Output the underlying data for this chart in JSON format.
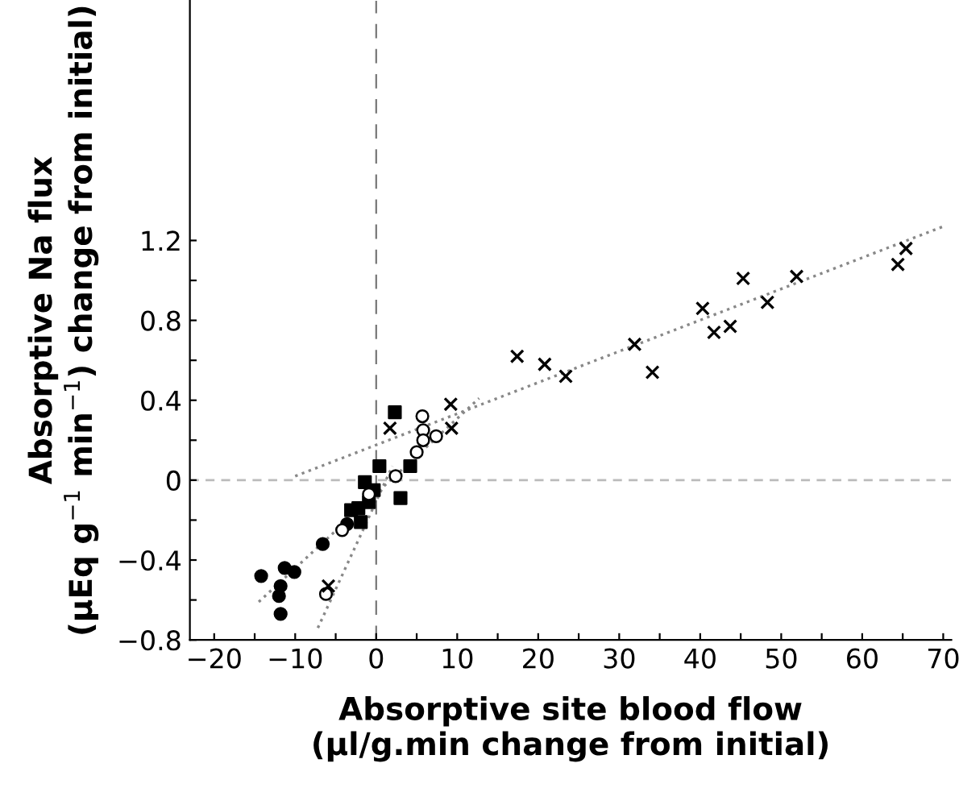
{
  "chart_data": {
    "type": "scatter",
    "xlabel": "Absorptive site blood flow\n(μl/g.min change from initial)",
    "ylabel": "Absorptive Na flux\n(μEq g$^{−1}$ min$^{−1}$) change from initial)",
    "xlim": [
      -23,
      71
    ],
    "ylim": [
      -0.8,
      2.4
    ],
    "xticks": [
      {
        "value": -20,
        "label": "−20"
      },
      {
        "value": -15,
        "label": null
      },
      {
        "value": -10,
        "label": "−10"
      },
      {
        "value": -5,
        "label": null
      },
      0,
      {
        "value": 5,
        "label": null
      },
      10,
      {
        "value": 15,
        "label": null
      },
      20,
      {
        "value": 25,
        "label": null
      },
      30,
      {
        "value": 35,
        "label": null
      },
      40,
      {
        "value": 45,
        "label": null
      },
      50,
      {
        "value": 55,
        "label": null
      },
      60,
      {
        "value": 65,
        "label": null
      },
      70
    ],
    "yticks": [
      {
        "value": -0.8,
        "label": "−0.8"
      },
      {
        "value": -0.6,
        "label": null
      },
      {
        "value": -0.4,
        "label": "−0.4"
      },
      {
        "value": -0.2,
        "label": null
      },
      0,
      {
        "value": 0.2,
        "label": null
      },
      0.4,
      {
        "value": 0.6,
        "label": null
      },
      0.8,
      {
        "value": 1.0,
        "label": null
      },
      1.2
    ],
    "grid": false,
    "ref_lines": [
      {
        "axis": "x",
        "value": 0,
        "line_style": "dashed",
        "color": "#777777"
      },
      {
        "axis": "y",
        "value": 0,
        "line_style": "dashed",
        "color": "#bbbbbb"
      }
    ],
    "series": [
      {
        "marker": "circle",
        "color": "#000000",
        "x": [
          -14.2,
          -11.3,
          -10.1,
          -11.8,
          -12.0,
          -11.8,
          -6.6,
          -3.6
        ],
        "values": [
          -0.48,
          -0.44,
          -0.46,
          -0.53,
          -0.58,
          -0.67,
          -0.32,
          -0.22
        ]
      },
      {
        "marker": "square",
        "color": "#000000",
        "x": [
          2.3,
          0.4,
          -1.4,
          4.2,
          3.0,
          -0.3,
          -0.9,
          -3.1,
          -1.9,
          -2.2
        ],
        "values": [
          0.34,
          0.07,
          -0.01,
          0.07,
          -0.09,
          -0.05,
          -0.11,
          -0.15,
          -0.21,
          -0.14
        ]
      },
      {
        "marker": "circle",
        "color": "#ffffff",
        "x": [
          5.7,
          5.8,
          5.8,
          5.0,
          7.4,
          2.4,
          -0.9,
          -4.2,
          -6.2
        ],
        "values": [
          0.32,
          0.25,
          0.2,
          0.14,
          0.22,
          0.02,
          -0.07,
          -0.25,
          -0.57
        ]
      },
      {
        "marker": "cross",
        "color": "#000000",
        "x": [
          9.2,
          1.7,
          9.3,
          -5.9,
          17.4,
          20.8,
          23.4,
          31.9,
          34.1,
          40.3,
          41.7,
          43.7,
          45.3,
          48.3,
          51.9,
          64.4,
          65.4
        ],
        "values": [
          0.38,
          0.26,
          0.26,
          -0.53,
          0.62,
          0.58,
          0.52,
          0.68,
          0.54,
          0.86,
          0.74,
          0.77,
          1.01,
          0.89,
          1.02,
          1.08,
          1.16
        ]
      },
      {
        "type": "line",
        "line_style": "dotted",
        "color": "#888888",
        "x": [
          -10,
          70
        ],
        "values": [
          0.02,
          1.27
        ]
      },
      {
        "type": "line",
        "line_style": "dotted",
        "color": "#888888",
        "x": [
          -14.5,
          12.7
        ],
        "values": [
          -0.61,
          0.41
        ]
      },
      {
        "type": "line",
        "line_style": "dotted",
        "color": "#888888",
        "x": [
          -7.2,
          2
        ],
        "values": [
          -0.74,
          0.07
        ]
      }
    ]
  }
}
